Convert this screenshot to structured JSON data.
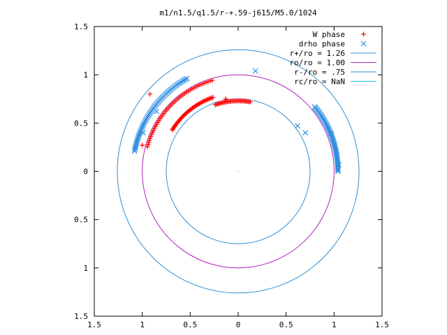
{
  "chart_data": {
    "type": "scatter",
    "title": "m1/n1.5/q1.5/r-+.59-j615/M5.0/1024",
    "xlabel": "",
    "ylabel": "",
    "xlim": [
      -1.5,
      1.5
    ],
    "ylim": [
      -1.5,
      1.5
    ],
    "x_ticks": [
      {
        "value": -1.5,
        "label": "1.5"
      },
      {
        "value": -1.0,
        "label": "1"
      },
      {
        "value": -0.5,
        "label": "0.5"
      },
      {
        "value": 0,
        "label": "0"
      },
      {
        "value": 0.5,
        "label": "0.5"
      },
      {
        "value": 1.0,
        "label": "1"
      },
      {
        "value": 1.5,
        "label": "1.5"
      }
    ],
    "y_ticks": [
      {
        "value": 1.5,
        "label": "1.5"
      },
      {
        "value": 1.0,
        "label": "1"
      },
      {
        "value": 0.5,
        "label": "0.5"
      },
      {
        "value": 0,
        "label": "0"
      },
      {
        "value": -0.5,
        "label": "0.5"
      },
      {
        "value": -1.0,
        "label": "1"
      },
      {
        "value": -1.5,
        "label": "1.5"
      }
    ],
    "grid": false,
    "legend_position": "top-right",
    "series": [
      {
        "name": "W phase",
        "marker": "plus",
        "color": "#ff0000",
        "arcs": [
          {
            "r": 0.98,
            "deg_from": 106,
            "deg_to": 165,
            "count": 45
          },
          {
            "r": 0.73,
            "deg_from": 80,
            "deg_to": 109,
            "count": 30
          },
          {
            "r": 0.81,
            "deg_from": 109,
            "deg_to": 148,
            "count": 40
          }
        ],
        "points": [
          {
            "x": -1.0,
            "y": 0.27
          },
          {
            "x": -0.92,
            "y": 0.8
          },
          {
            "x": -0.13,
            "y": 0.75
          }
        ]
      },
      {
        "name": "drho phase",
        "marker": "cross",
        "color": "#2f8fe0",
        "arcs": [
          {
            "r": 1.1,
            "deg_from": 119,
            "deg_to": 169,
            "count": 60
          },
          {
            "r": 1.04,
            "deg_from": 0,
            "deg_to": 40,
            "count": 55
          }
        ],
        "points": [
          {
            "x": 0.18,
            "y": 1.04
          },
          {
            "x": -0.85,
            "y": 0.62
          },
          {
            "x": -0.99,
            "y": 0.4
          },
          {
            "x": 0.97,
            "y": 0.39
          },
          {
            "x": 1.03,
            "y": 0.16
          },
          {
            "x": 1.05,
            "y": 0.07
          },
          {
            "x": 0.7,
            "y": 0.4
          },
          {
            "x": 0.62,
            "y": 0.47
          }
        ]
      },
      {
        "name": "r+/ro = 1.26",
        "type": "circle",
        "r": 1.26,
        "color": "#2f8fd0"
      },
      {
        "name": "ro/ro = 1.00",
        "type": "circle",
        "r": 1.0,
        "color": "#b020c0"
      },
      {
        "name": "r-/ro = .75",
        "type": "circle",
        "r": 0.75,
        "color": "#2f8fd0"
      },
      {
        "name": "rc/ro = NaN",
        "type": "circle",
        "r": null,
        "color": "#20c0e0"
      }
    ]
  }
}
